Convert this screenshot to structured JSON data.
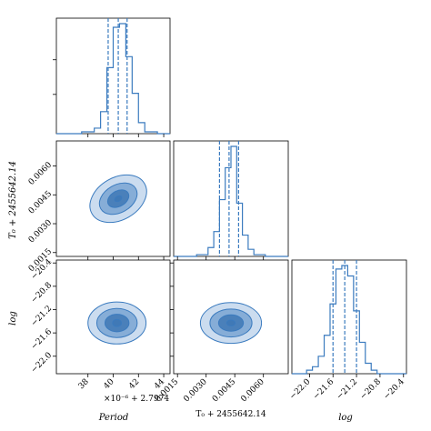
{
  "chart_data": {
    "type": "corner",
    "colors": {
      "line": "#3b7bbf",
      "fill_inner": "#3f78b5",
      "fill_mid": "#7aa5d2",
      "fill_outer": "#c2d6ec"
    },
    "params": [
      {
        "label": "Period",
        "offset": "×10⁻⁶ + 2.7974",
        "range": [
          35.5,
          44.5
        ],
        "ticks": [
          38,
          40,
          42,
          44
        ],
        "tick_labels": [
          "38",
          "40",
          "42",
          "44"
        ],
        "quantiles": [
          39.6,
          40.4,
          41.1
        ]
      },
      {
        "label": "T₀ + 2455642.14",
        "offset": "+ 2455642.14",
        "range": [
          0.0013,
          0.0073
        ],
        "ticks": [
          0.0015,
          0.003,
          0.0045,
          0.006
        ],
        "tick_labels": [
          "0.0015",
          "0.0030",
          "0.0045",
          "0.0060"
        ],
        "quantiles": [
          0.0037,
          0.0042,
          0.0047
        ]
      },
      {
        "label": "log_f",
        "offset": "",
        "range": [
          -22.3,
          -20.35
        ],
        "ticks": [
          -22.0,
          -21.6,
          -21.2,
          -20.8,
          -20.4
        ],
        "tick_labels": [
          "−22.0",
          "−21.6",
          "−21.2",
          "−20.8",
          "−20.4"
        ],
        "quantiles": [
          -21.6,
          -21.4,
          -21.2
        ]
      }
    ],
    "hist": [
      {
        "bins": [
          35.5,
          36.5,
          37.5,
          38.5,
          39.0,
          39.5,
          40.0,
          40.5,
          41.0,
          41.5,
          42.0,
          42.5,
          43.5,
          44.5
        ],
        "counts": [
          0,
          0,
          1,
          3,
          12,
          36,
          58,
          60,
          42,
          22,
          6,
          1,
          0
        ]
      },
      {
        "bins": [
          0.0013,
          0.0025,
          0.0031,
          0.0034,
          0.0037,
          0.004,
          0.0043,
          0.0046,
          0.0049,
          0.0052,
          0.0055,
          0.0061,
          0.0073
        ],
        "counts": [
          0,
          1,
          5,
          14,
          32,
          50,
          62,
          30,
          12,
          4,
          1,
          0
        ]
      },
      {
        "bins": [
          -22.3,
          -22.05,
          -21.95,
          -21.85,
          -21.75,
          -21.65,
          -21.55,
          -21.45,
          -21.35,
          -21.25,
          -21.15,
          -21.05,
          -20.95,
          -20.85,
          -20.35
        ],
        "counts": [
          0,
          2,
          4,
          10,
          22,
          40,
          60,
          62,
          56,
          36,
          18,
          6,
          2,
          0
        ]
      }
    ],
    "contours": [
      {
        "panel": [
          0,
          1
        ],
        "center": [
          40.4,
          0.0043
        ],
        "semi_axes": [
          [
            2.4,
            0.0011
          ],
          [
            1.6,
            0.00072
          ],
          [
            0.9,
            0.0004
          ],
          [
            0.3,
            0.00013
          ]
        ],
        "tilt": -0.35
      },
      {
        "panel": [
          0,
          2
        ],
        "center": [
          40.3,
          -21.43
        ],
        "semi_axes": [
          [
            2.3,
            0.36
          ],
          [
            1.6,
            0.25
          ],
          [
            0.95,
            0.15
          ],
          [
            0.35,
            0.06
          ]
        ],
        "tilt": 0
      },
      {
        "panel": [
          1,
          2
        ],
        "center": [
          0.0043,
          -21.43
        ],
        "semi_axes": [
          [
            0.0016,
            0.35
          ],
          [
            0.0011,
            0.24
          ],
          [
            0.00065,
            0.14
          ],
          [
            0.00022,
            0.05
          ]
        ],
        "tilt": 0
      }
    ]
  }
}
